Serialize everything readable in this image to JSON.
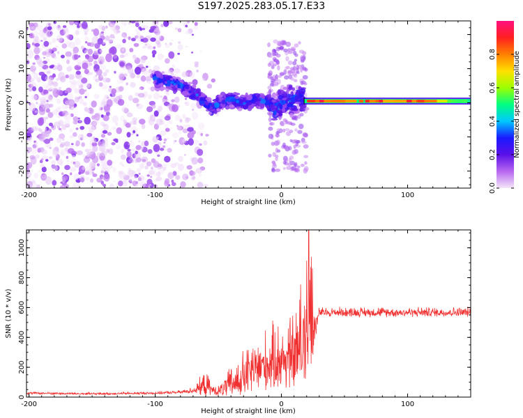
{
  "title": "S197.2025.283.05.17.E33",
  "chart_data": [
    {
      "type": "heatmap",
      "name": "spectrogram",
      "xlabel": "Height of straight line (km)",
      "ylabel": "Frequency (Hz)",
      "xlim": [
        -202,
        150
      ],
      "ylim": [
        -25,
        24
      ],
      "x_ticks": [
        -200,
        -100,
        0,
        100
      ],
      "x_tick_labels": [
        "-200",
        "-100",
        "0",
        "100"
      ],
      "y_ticks": [
        -20,
        -10,
        0,
        10,
        20
      ],
      "y_tick_labels": [
        "-20",
        "-10",
        "0",
        "10",
        "20"
      ],
      "colorbar": {
        "label": "Normalized spectral amplitude",
        "range": [
          0.0,
          1.0
        ],
        "ticks": [
          0.0,
          0.2,
          0.4,
          0.6,
          0.8
        ],
        "tick_labels": [
          "0.0",
          "0.2",
          "0.4",
          "0.6",
          "0.8"
        ],
        "colors": [
          "#f4e6f8",
          "#b868f0",
          "#5a10e8",
          "#1a1aff",
          "#00c8ff",
          "#00ff80",
          "#9cff00",
          "#ffe000",
          "#ff8000",
          "#ff2020",
          "#ff1080"
        ]
      },
      "features": {
        "noise_region_x": [
          -202,
          -82
        ],
        "noise_y_range": [
          -25,
          24
        ],
        "ridge_x": [
          -100,
          -80,
          -70,
          -60,
          -55,
          -50,
          -40,
          -30,
          -20,
          -10,
          -5,
          0,
          10,
          18
        ],
        "ridge_y": [
          7,
          5,
          3,
          0,
          -2,
          0,
          1,
          0,
          1,
          0,
          -2,
          0,
          1,
          1
        ],
        "stable_line_x": [
          18,
          150
        ],
        "stable_line_y": 0.5,
        "stable_amplitude": 0.9
      }
    },
    {
      "type": "line",
      "name": "snr",
      "xlabel": "Height of straight line (km)",
      "ylabel": "SNR (10 * v/v)",
      "xlim": [
        -202,
        150
      ],
      "ylim": [
        0,
        1120
      ],
      "x_ticks": [
        -200,
        -100,
        0,
        100
      ],
      "x_tick_labels": [
        "-200",
        "-100",
        "0",
        "100"
      ],
      "y_ticks": [
        0,
        200,
        400,
        600,
        800,
        1000
      ],
      "y_tick_labels": [
        "0",
        "200",
        "400",
        "600",
        "800",
        "1000"
      ],
      "line_color": "#f03030",
      "envelope_x": [
        -202,
        -150,
        -100,
        -80,
        -70,
        -60,
        -55,
        -50,
        -40,
        -30,
        -20,
        -10,
        0,
        10,
        18,
        22,
        27,
        30,
        150
      ],
      "envelope_base": [
        25,
        20,
        25,
        30,
        40,
        60,
        40,
        30,
        60,
        100,
        150,
        180,
        200,
        220,
        260,
        300,
        450,
        560,
        560
      ],
      "envelope_amp": [
        15,
        15,
        15,
        20,
        40,
        160,
        60,
        60,
        200,
        300,
        350,
        380,
        450,
        500,
        700,
        800,
        150,
        60,
        60
      ]
    }
  ]
}
